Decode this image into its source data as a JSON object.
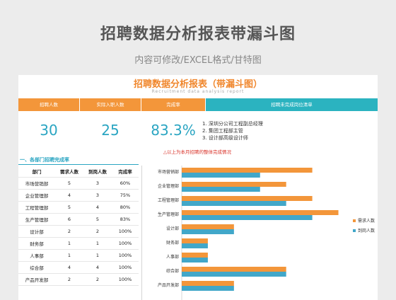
{
  "banner": {
    "title": "招聘数据分析报表带漏斗图",
    "subtitle": "内容可修改/EXCEL格式/甘特图"
  },
  "report": {
    "title": "招聘数据分析报表（带漏斗图）",
    "subtitle": "Recruitment data analysis report",
    "headers": [
      "招聘人数",
      "实际入职人数",
      "完成率",
      "招聘未完成岗位清单"
    ],
    "header_colors": {
      "orange": "#f3963a",
      "teal": "#2bb3c0",
      "kpi_text": "#2aa5c2",
      "note_red": "#d9342b"
    },
    "kpis": {
      "recruit": "30",
      "hired": "25",
      "rate": "83.3%"
    },
    "vacancies": [
      "1. 深圳分公司工程副总经理",
      "2. 集团工程部主管",
      "3. 设计部高级设计师"
    ],
    "note": "△以上为本月招聘的整体完成情况"
  },
  "section": {
    "title": "一、各部门招聘完成率",
    "columns": [
      "部门",
      "需求人数",
      "到岗人数",
      "完成率"
    ],
    "rows": [
      [
        "市场营销部",
        "5",
        "3",
        "60%"
      ],
      [
        "企业管理部",
        "4",
        "3",
        "75%"
      ],
      [
        "工程管理部",
        "5",
        "4",
        "80%"
      ],
      [
        "生产管理部",
        "6",
        "5",
        "83%"
      ],
      [
        "设计部",
        "2",
        "2",
        "100%"
      ],
      [
        "财务部",
        "1",
        "1",
        "100%"
      ],
      [
        "人事部",
        "1",
        "1",
        "100%"
      ],
      [
        "综合部",
        "4",
        "4",
        "100%"
      ],
      [
        "产品开发部",
        "2",
        "2",
        "100%"
      ]
    ]
  },
  "chart_data": {
    "type": "bar",
    "orientation": "horizontal",
    "categories": [
      "市场营销部",
      "企业管理部",
      "工程管理部",
      "生产管理部",
      "设计部",
      "财务部",
      "人事部",
      "综合部",
      "产品开发部"
    ],
    "series": [
      {
        "name": "需求人数",
        "values": [
          5,
          4,
          5,
          6,
          2,
          1,
          1,
          4,
          2
        ],
        "color": "#f3963a"
      },
      {
        "name": "到岗人数",
        "values": [
          3,
          3,
          4,
          5,
          2,
          1,
          1,
          4,
          2
        ],
        "color": "#41a7c9"
      }
    ],
    "xlim": [
      0,
      6.5
    ],
    "grid": false,
    "legend": "right"
  }
}
